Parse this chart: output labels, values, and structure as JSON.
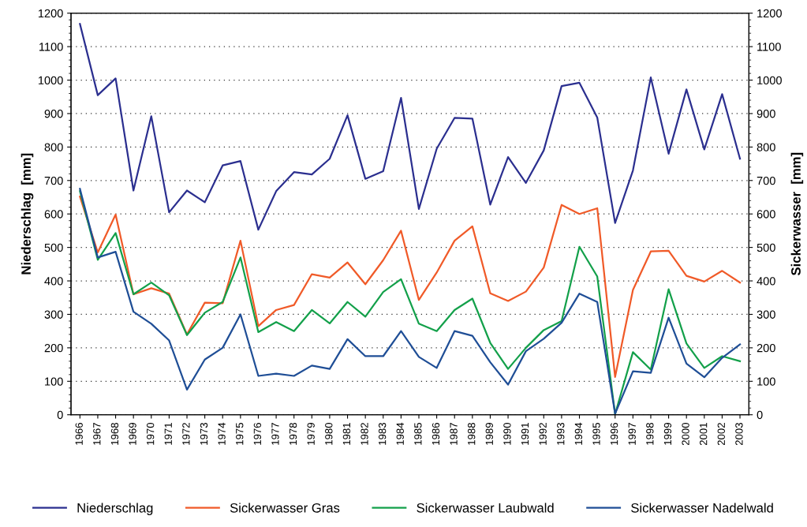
{
  "chart_data": {
    "type": "line",
    "categories": [
      "1966",
      "1967",
      "1968",
      "1969",
      "1970",
      "1971",
      "1972",
      "1973",
      "1974",
      "1975",
      "1976",
      "1977",
      "1978",
      "1979",
      "1980",
      "1981",
      "1982",
      "1983",
      "1984",
      "1985",
      "1986",
      "1987",
      "1988",
      "1989",
      "1990",
      "1991",
      "1992",
      "1993",
      "1994",
      "1995",
      "1996",
      "1997",
      "1998",
      "1999",
      "2000",
      "2001",
      "2002",
      "2003"
    ],
    "series": [
      {
        "name": "Niederschlag",
        "color": "#2b2f8f",
        "values": [
          1168,
          955,
          1005,
          670,
          892,
          605,
          670,
          635,
          745,
          758,
          553,
          668,
          725,
          718,
          765,
          895,
          705,
          728,
          947,
          615,
          795,
          887,
          885,
          628,
          770,
          693,
          790,
          982,
          992,
          888,
          573,
          730,
          1008,
          780,
          972,
          793,
          958,
          765
        ]
      },
      {
        "name": "Sickerwasser Gras",
        "color": "#f05a28",
        "values": [
          652,
          485,
          598,
          360,
          378,
          362,
          240,
          335,
          333,
          520,
          265,
          313,
          328,
          420,
          410,
          455,
          390,
          462,
          550,
          343,
          425,
          520,
          563,
          363,
          340,
          368,
          440,
          627,
          600,
          617,
          113,
          373,
          488,
          490,
          415,
          398,
          430,
          395
        ]
      },
      {
        "name": "Sickerwasser Laubwald",
        "color": "#13a04a",
        "values": [
          668,
          463,
          543,
          360,
          395,
          357,
          238,
          305,
          337,
          470,
          247,
          277,
          250,
          313,
          273,
          337,
          293,
          367,
          405,
          272,
          250,
          313,
          347,
          215,
          137,
          200,
          253,
          280,
          502,
          413,
          2,
          187,
          135,
          375,
          213,
          140,
          175,
          160
        ]
      },
      {
        "name": "Sickerwasser Nadelwald",
        "color": "#1f4e96",
        "values": [
          675,
          470,
          487,
          308,
          272,
          222,
          75,
          165,
          200,
          300,
          116,
          123,
          116,
          147,
          137,
          226,
          175,
          175,
          250,
          173,
          140,
          250,
          236,
          157,
          90,
          190,
          227,
          275,
          362,
          337,
          3,
          130,
          125,
          290,
          153,
          112,
          170,
          210
        ]
      }
    ],
    "ylabel": "Niederschlag  [mm]",
    "y2label": "Sickerwasser  [mm]",
    "ylim": [
      0,
      1200
    ],
    "yticks": [
      0,
      100,
      200,
      300,
      400,
      500,
      600,
      700,
      800,
      900,
      1000,
      1100,
      1200
    ],
    "y2lim": [
      0,
      1200
    ],
    "y2ticks": [
      0,
      100,
      200,
      300,
      400,
      500,
      600,
      700,
      800,
      900,
      1000,
      1100,
      1200
    ],
    "grid": "y",
    "legend": "bottom",
    "marker": "none",
    "line_style": "solid"
  }
}
